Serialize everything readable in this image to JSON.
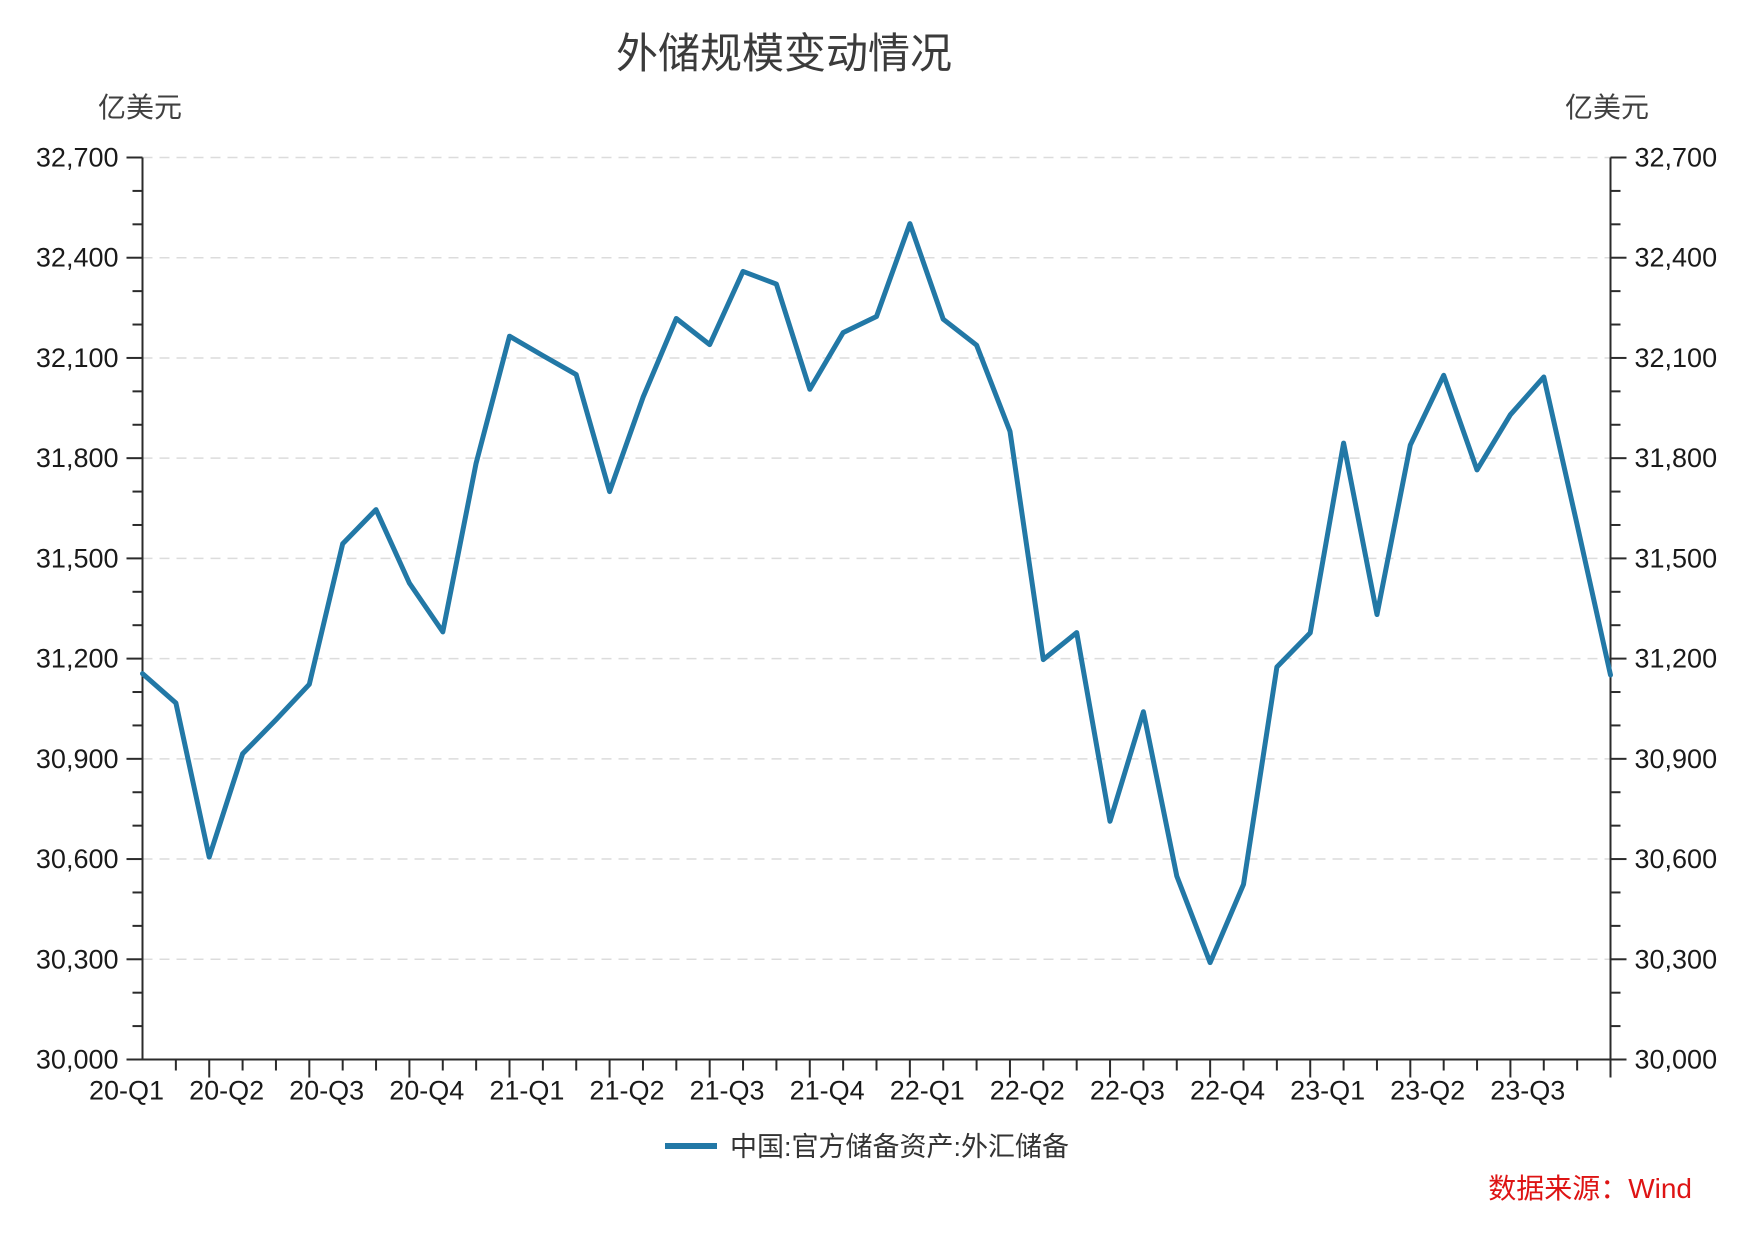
{
  "source": "数据来源：Wind",
  "colors": {
    "series": "#2278a6",
    "grid": "#dcdcdc",
    "axis": "#2b2b2b",
    "text": "#1a1a1a",
    "source": "#de1414"
  },
  "legend": {
    "swatch": "line"
  },
  "chart_data": {
    "type": "line",
    "title": "外储规模变动情况",
    "unit": "亿美元",
    "series_name": "中国:官方储备资产:外汇储备",
    "x_labels": [
      "20-Q1",
      "20-Q2",
      "20-Q3",
      "20-Q4",
      "21-Q1",
      "21-Q2",
      "21-Q3",
      "21-Q4",
      "22-Q1",
      "22-Q2",
      "22-Q3",
      "22-Q4",
      "23-Q1",
      "23-Q2",
      "23-Q3"
    ],
    "x_months_per_label": 3,
    "x_points": 45,
    "values": [
      31155,
      31067,
      30606,
      30915,
      31017,
      31123,
      31544,
      31646,
      31426,
      31280,
      31785,
      32165,
      32107,
      32050,
      31700,
      31982,
      32218,
      32140,
      32359,
      32321,
      32006,
      32176,
      32224,
      32502,
      32216,
      32138,
      31880,
      31197,
      31278,
      30713,
      31041,
      30549,
      30290,
      30524,
      31175,
      31277,
      31845,
      31332,
      31839,
      32048,
      31765,
      31930,
      32043,
      31601,
      31151
    ],
    "ylim": [
      30000,
      32700
    ],
    "y_major_step": 300,
    "y_minor_step": 100,
    "grid": "horizontal-dashed",
    "legend_position": "bottom-center",
    "y_axis_sides": "both"
  }
}
